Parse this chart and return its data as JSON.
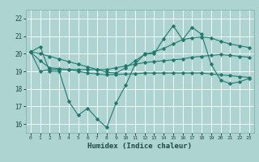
{
  "xlabel": "Humidex (Indice chaleur)",
  "ylabel": "",
  "background_color": "#aed4d2",
  "grid_color": "#ffffff",
  "line_color": "#1e7a6e",
  "xmin": -0.5,
  "xmax": 23.5,
  "ymin": 15.5,
  "ymax": 22.5,
  "yticks": [
    16,
    17,
    18,
    19,
    20,
    21,
    22
  ],
  "xticks": [
    0,
    1,
    2,
    3,
    4,
    5,
    6,
    7,
    8,
    9,
    10,
    11,
    12,
    13,
    14,
    15,
    16,
    17,
    18,
    19,
    20,
    21,
    22,
    23
  ],
  "series": [
    [
      20.1,
      20.4,
      19.0,
      19.0,
      17.3,
      16.5,
      16.9,
      16.3,
      15.8,
      17.2,
      18.2,
      19.4,
      20.0,
      20.0,
      20.85,
      21.6,
      20.8,
      21.5,
      21.1,
      19.4,
      18.5,
      18.3,
      18.4,
      18.6
    ],
    [
      20.1,
      19.0,
      19.1,
      19.1,
      19.1,
      19.1,
      19.1,
      19.1,
      19.1,
      19.2,
      19.3,
      19.4,
      19.5,
      19.55,
      19.6,
      19.65,
      19.7,
      19.8,
      19.85,
      19.9,
      19.95,
      19.9,
      19.85,
      19.8
    ],
    [
      20.1,
      19.6,
      19.2,
      19.15,
      19.1,
      19.0,
      18.9,
      18.85,
      18.8,
      18.82,
      18.84,
      18.86,
      18.9,
      18.9,
      18.9,
      18.9,
      18.9,
      18.9,
      18.9,
      18.85,
      18.8,
      18.75,
      18.7,
      18.65
    ],
    [
      20.1,
      20.0,
      19.85,
      19.7,
      19.55,
      19.4,
      19.25,
      19.1,
      18.95,
      18.9,
      19.2,
      19.6,
      19.95,
      20.1,
      20.3,
      20.55,
      20.8,
      20.9,
      20.95,
      20.9,
      20.7,
      20.55,
      20.45,
      20.35
    ]
  ]
}
